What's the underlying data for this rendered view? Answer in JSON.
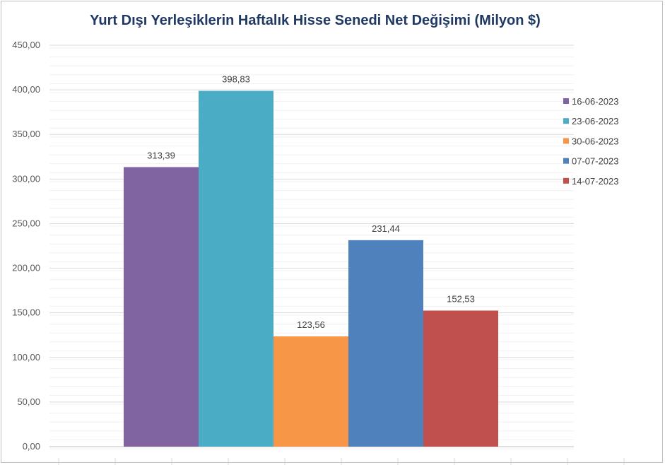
{
  "chart_data": {
    "type": "bar",
    "title": "Yurt Dışı Yerleşiklerin Haftalık Hisse Senedi Net Değişimi (Milyon $)",
    "xlabel": "",
    "ylabel": "",
    "ylim": [
      0,
      450
    ],
    "yticks": [
      "0,00",
      "50,00",
      "100,00",
      "150,00",
      "200,00",
      "250,00",
      "300,00",
      "350,00",
      "400,00",
      "450,00"
    ],
    "grid": true,
    "legend_position": "right",
    "series": [
      {
        "name": "16-06-2023",
        "value": 313.39,
        "label": "313,39",
        "color": "#8064a2"
      },
      {
        "name": "23-06-2023",
        "value": 398.83,
        "label": "398,83",
        "color": "#4bacc6"
      },
      {
        "name": "30-06-2023",
        "value": 123.56,
        "label": "123,56",
        "color": "#f79646"
      },
      {
        "name": "07-07-2023",
        "value": 231.44,
        "label": "231,44",
        "color": "#4f81bd"
      },
      {
        "name": "14-07-2023",
        "value": 152.53,
        "label": "152,53",
        "color": "#c0504d"
      }
    ]
  }
}
